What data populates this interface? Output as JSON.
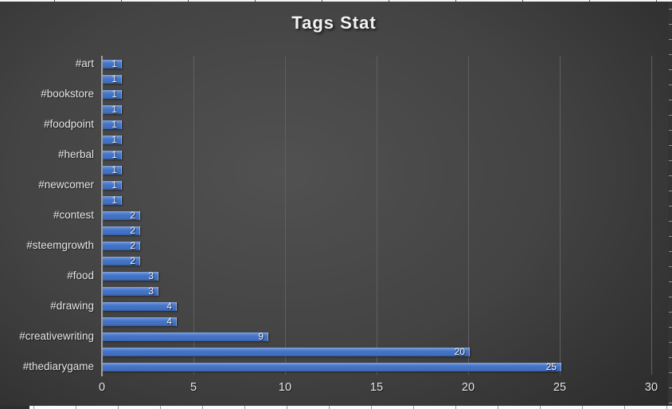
{
  "chart_data": {
    "type": "bar",
    "orientation": "horizontal",
    "title": "Tags Stat",
    "categories": [
      "#art",
      null,
      "#bookstore",
      null,
      "#foodpoint",
      null,
      "#herbal",
      null,
      "#newcomer",
      null,
      "#contest",
      null,
      "#steemgrowth",
      null,
      "#food",
      null,
      "#drawing",
      null,
      "#creativewriting",
      null,
      "#thediarygame"
    ],
    "values": [
      1,
      1,
      1,
      1,
      1,
      1,
      1,
      1,
      1,
      1,
      2,
      2,
      2,
      2,
      3,
      3,
      4,
      4,
      9,
      20,
      25
    ],
    "data_labels": [
      "1",
      "1",
      "1",
      "1",
      "1",
      "1",
      "1",
      "1",
      "1",
      "1",
      "2",
      "2",
      "2",
      "2",
      "3",
      "3",
      "4",
      "4",
      "9",
      "20",
      "25"
    ],
    "x_ticks": [
      "0",
      "5",
      "10",
      "15",
      "20",
      "25",
      "30"
    ],
    "xlim": [
      0,
      30
    ],
    "xlabel": "",
    "ylabel": "",
    "grid": "vertical-major",
    "legend": "none",
    "colors": {
      "bar": "#4472c4",
      "bar_highlight": "#8aabe2",
      "bar_shade": "#365c9e",
      "background_center": "#515151",
      "background_edge": "#232323",
      "gridline": "#5f5f5f",
      "axis_line": "#a3a3a3",
      "text": "#e6e6e6",
      "title_text": "#f2f2f2",
      "data_label_text": "#f5f5f5",
      "sheet_strip": "#f6f6f6"
    }
  }
}
